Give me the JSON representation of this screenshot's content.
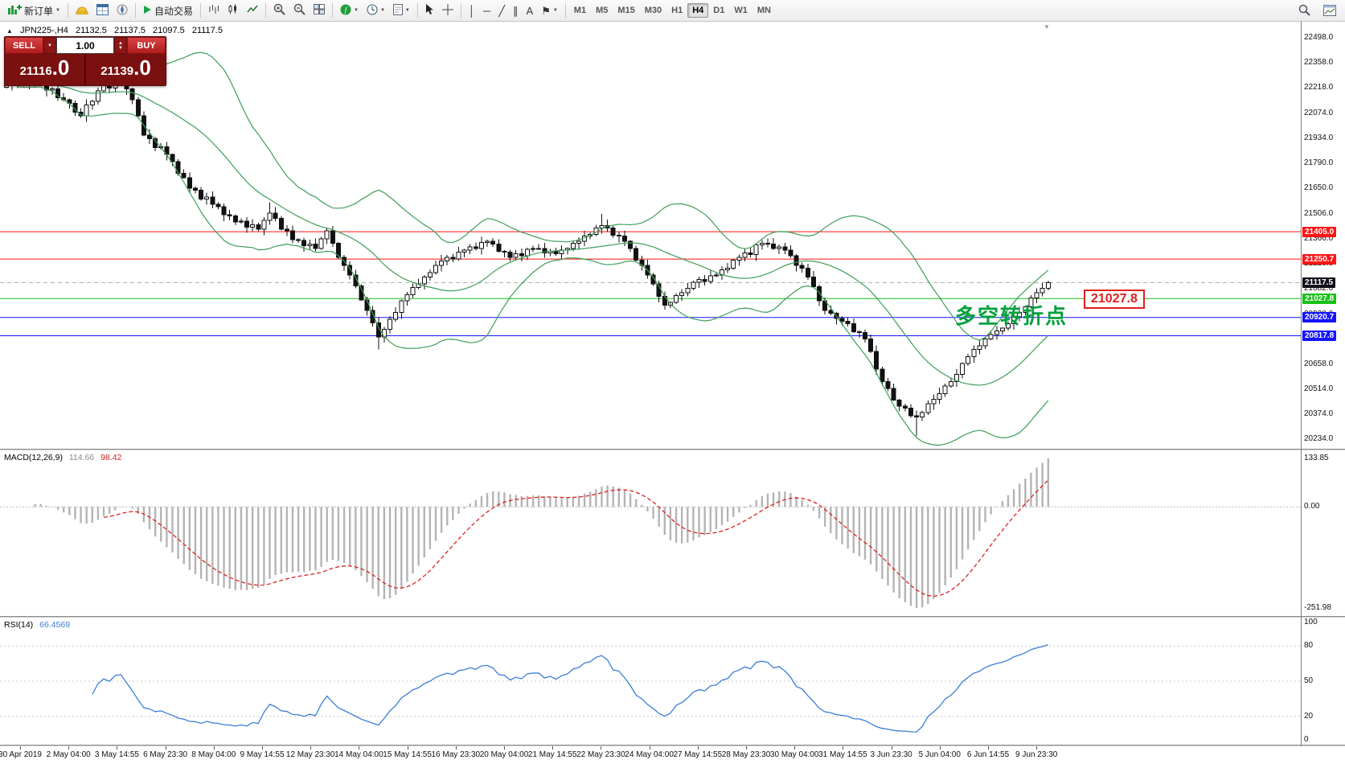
{
  "toolbar": {
    "new_order_label": "新订单",
    "autotrading_label": "自动交易",
    "timeframes": [
      "M1",
      "M5",
      "M15",
      "M30",
      "H1",
      "H4",
      "D1",
      "W1",
      "MN"
    ],
    "active_timeframe": "H4"
  },
  "glyphs": {
    "caret": "▼",
    "up": "▲",
    "play": "▶",
    "vline": "│",
    "hline": "─",
    "tline": "╱",
    "channel": "∥",
    "text_tool": "A",
    "label_tool": "⚑",
    "symbol_marker": "▲",
    "shift_marker": "▼"
  },
  "chart": {
    "symbol_period": "JPN225-,H4",
    "open": "21132.5",
    "high": "21137.5",
    "low": "21097.5",
    "close": "21117.5"
  },
  "trade_panel": {
    "sell_label": "SELL",
    "buy_label": "BUY",
    "volume": "1.00",
    "sell_price_main": "21116",
    "sell_price_big": ".0",
    "buy_price_main": "21139",
    "buy_price_big": ".0"
  },
  "annotations": {
    "turning_point_text": "多空转折点",
    "boxed_price": "21027.8"
  },
  "chart_data": {
    "type": "candlestick",
    "symbol": "JPN225-",
    "period": "H4",
    "price_axis": {
      "min": 20180,
      "max": 22590,
      "ticks": [
        22498.0,
        22358.0,
        22218.0,
        22074.0,
        21934.0,
        21790.0,
        21650.0,
        21506.0,
        21366.0,
        21226.0,
        21082.0,
        20938.0,
        20798.0,
        20658.0,
        20514.0,
        20374.0,
        20234.0
      ]
    },
    "open_first": 22220,
    "closes": [
      22230,
      22245,
      22235,
      22260,
      22240,
      22265,
      22250,
      22205,
      22210,
      22160,
      22150,
      22130,
      22080,
      22060,
      22120,
      22140,
      22200,
      22230,
      22215,
      22255,
      22260,
      22210,
      22150,
      22060,
      21950,
      21930,
      21880,
      21885,
      21840,
      21800,
      21735,
      21710,
      21650,
      21640,
      21590,
      21600,
      21560,
      21545,
      21500,
      21495,
      21460,
      21465,
      21430,
      21445,
      21420,
      21470,
      21510,
      21480,
      21420,
      21410,
      21360,
      21355,
      21325,
      21335,
      21310,
      21365,
      21410,
      21340,
      21260,
      21215,
      21160,
      21100,
      21020,
      20960,
      20890,
      20810,
      20855,
      20910,
      20950,
      21015,
      21050,
      21090,
      21110,
      21150,
      21175,
      21215,
      21240,
      21260,
      21250,
      21290,
      21300,
      21320,
      21310,
      21345,
      21350,
      21335,
      21295,
      21290,
      21260,
      21280,
      21270,
      21305,
      21310,
      21310,
      21285,
      21295,
      21280,
      21300,
      21310,
      21340,
      21350,
      21380,
      21390,
      21425,
      21440,
      21425,
      21385,
      21380,
      21350,
      21310,
      21245,
      21215,
      21160,
      21110,
      21040,
      20990,
      21005,
      21045,
      21060,
      21085,
      21120,
      21135,
      21125,
      21155,
      21160,
      21190,
      21200,
      21245,
      21260,
      21285,
      21275,
      21330,
      21340,
      21335,
      21310,
      21320,
      21300,
      21270,
      21215,
      21200,
      21150,
      21095,
      21015,
      20960,
      20945,
      20915,
      20900,
      20885,
      20840,
      20835,
      20800,
      20730,
      20630,
      20560,
      20520,
      20455,
      20420,
      20410,
      20365,
      20360,
      20385,
      20435,
      20460,
      20490,
      20535,
      20560,
      20600,
      20660,
      20700,
      20740,
      20760,
      20800,
      20825,
      20845,
      20860,
      20885,
      20925,
      20950,
      20980,
      21030,
      21060,
      21085,
      21117.5
    ],
    "hlines": [
      {
        "price": 21405.0,
        "color": "#ff1414",
        "label": "21405.0",
        "style": "solid"
      },
      {
        "price": 21250.7,
        "color": "#ff1414",
        "label": "21250.7",
        "style": "solid"
      },
      {
        "price": 21117.5,
        "color": "#b0b0b0",
        "label": "21117.5",
        "style": "dashed",
        "label_bg": "#10101c"
      },
      {
        "price": 21027.8,
        "color": "#17c217",
        "label": "21027.8",
        "style": "solid"
      },
      {
        "price": 20920.7,
        "color": "#1414ff",
        "label": "20920.7",
        "style": "solid"
      },
      {
        "price": 20817.8,
        "color": "#1414ff",
        "label": "20817.8",
        "style": "solid"
      }
    ],
    "indicators": {
      "bollinger": {
        "period": 20,
        "deviation": 2,
        "color": "#3d9e56"
      },
      "macd": {
        "label": "MACD(12,26,9)",
        "values": [
          "114.66",
          "98.42"
        ],
        "axis": [
          "133.85",
          "0.00",
          "-251.98"
        ],
        "hist_color": "#b4b4b4",
        "signal_color": "#dd2222"
      },
      "rsi": {
        "label": "RSI(14)",
        "value": "66.4569",
        "axis": [
          "100",
          "80",
          "50",
          "20",
          "0"
        ],
        "levels": [
          80,
          50,
          20
        ],
        "color": "#3b7dd8"
      }
    },
    "time_axis": [
      "30 Apr 2019",
      "2 May 04:00",
      "3 May 14:55",
      "6 May 23:30",
      "8 May 04:00",
      "9 May 14:55",
      "12 May 23:30",
      "14 May 04:00",
      "15 May 14:55",
      "16 May 23:30",
      "20 May 04:00",
      "21 May 14:55",
      "22 May 23:30",
      "24 May 04:00",
      "27 May 14:55",
      "28 May 23:30",
      "30 May 04:00",
      "31 May 14:55",
      "3 Jun 23:30",
      "5 Jun 04:00",
      "6 Jun 14:55",
      "9 Jun 23:30"
    ]
  }
}
